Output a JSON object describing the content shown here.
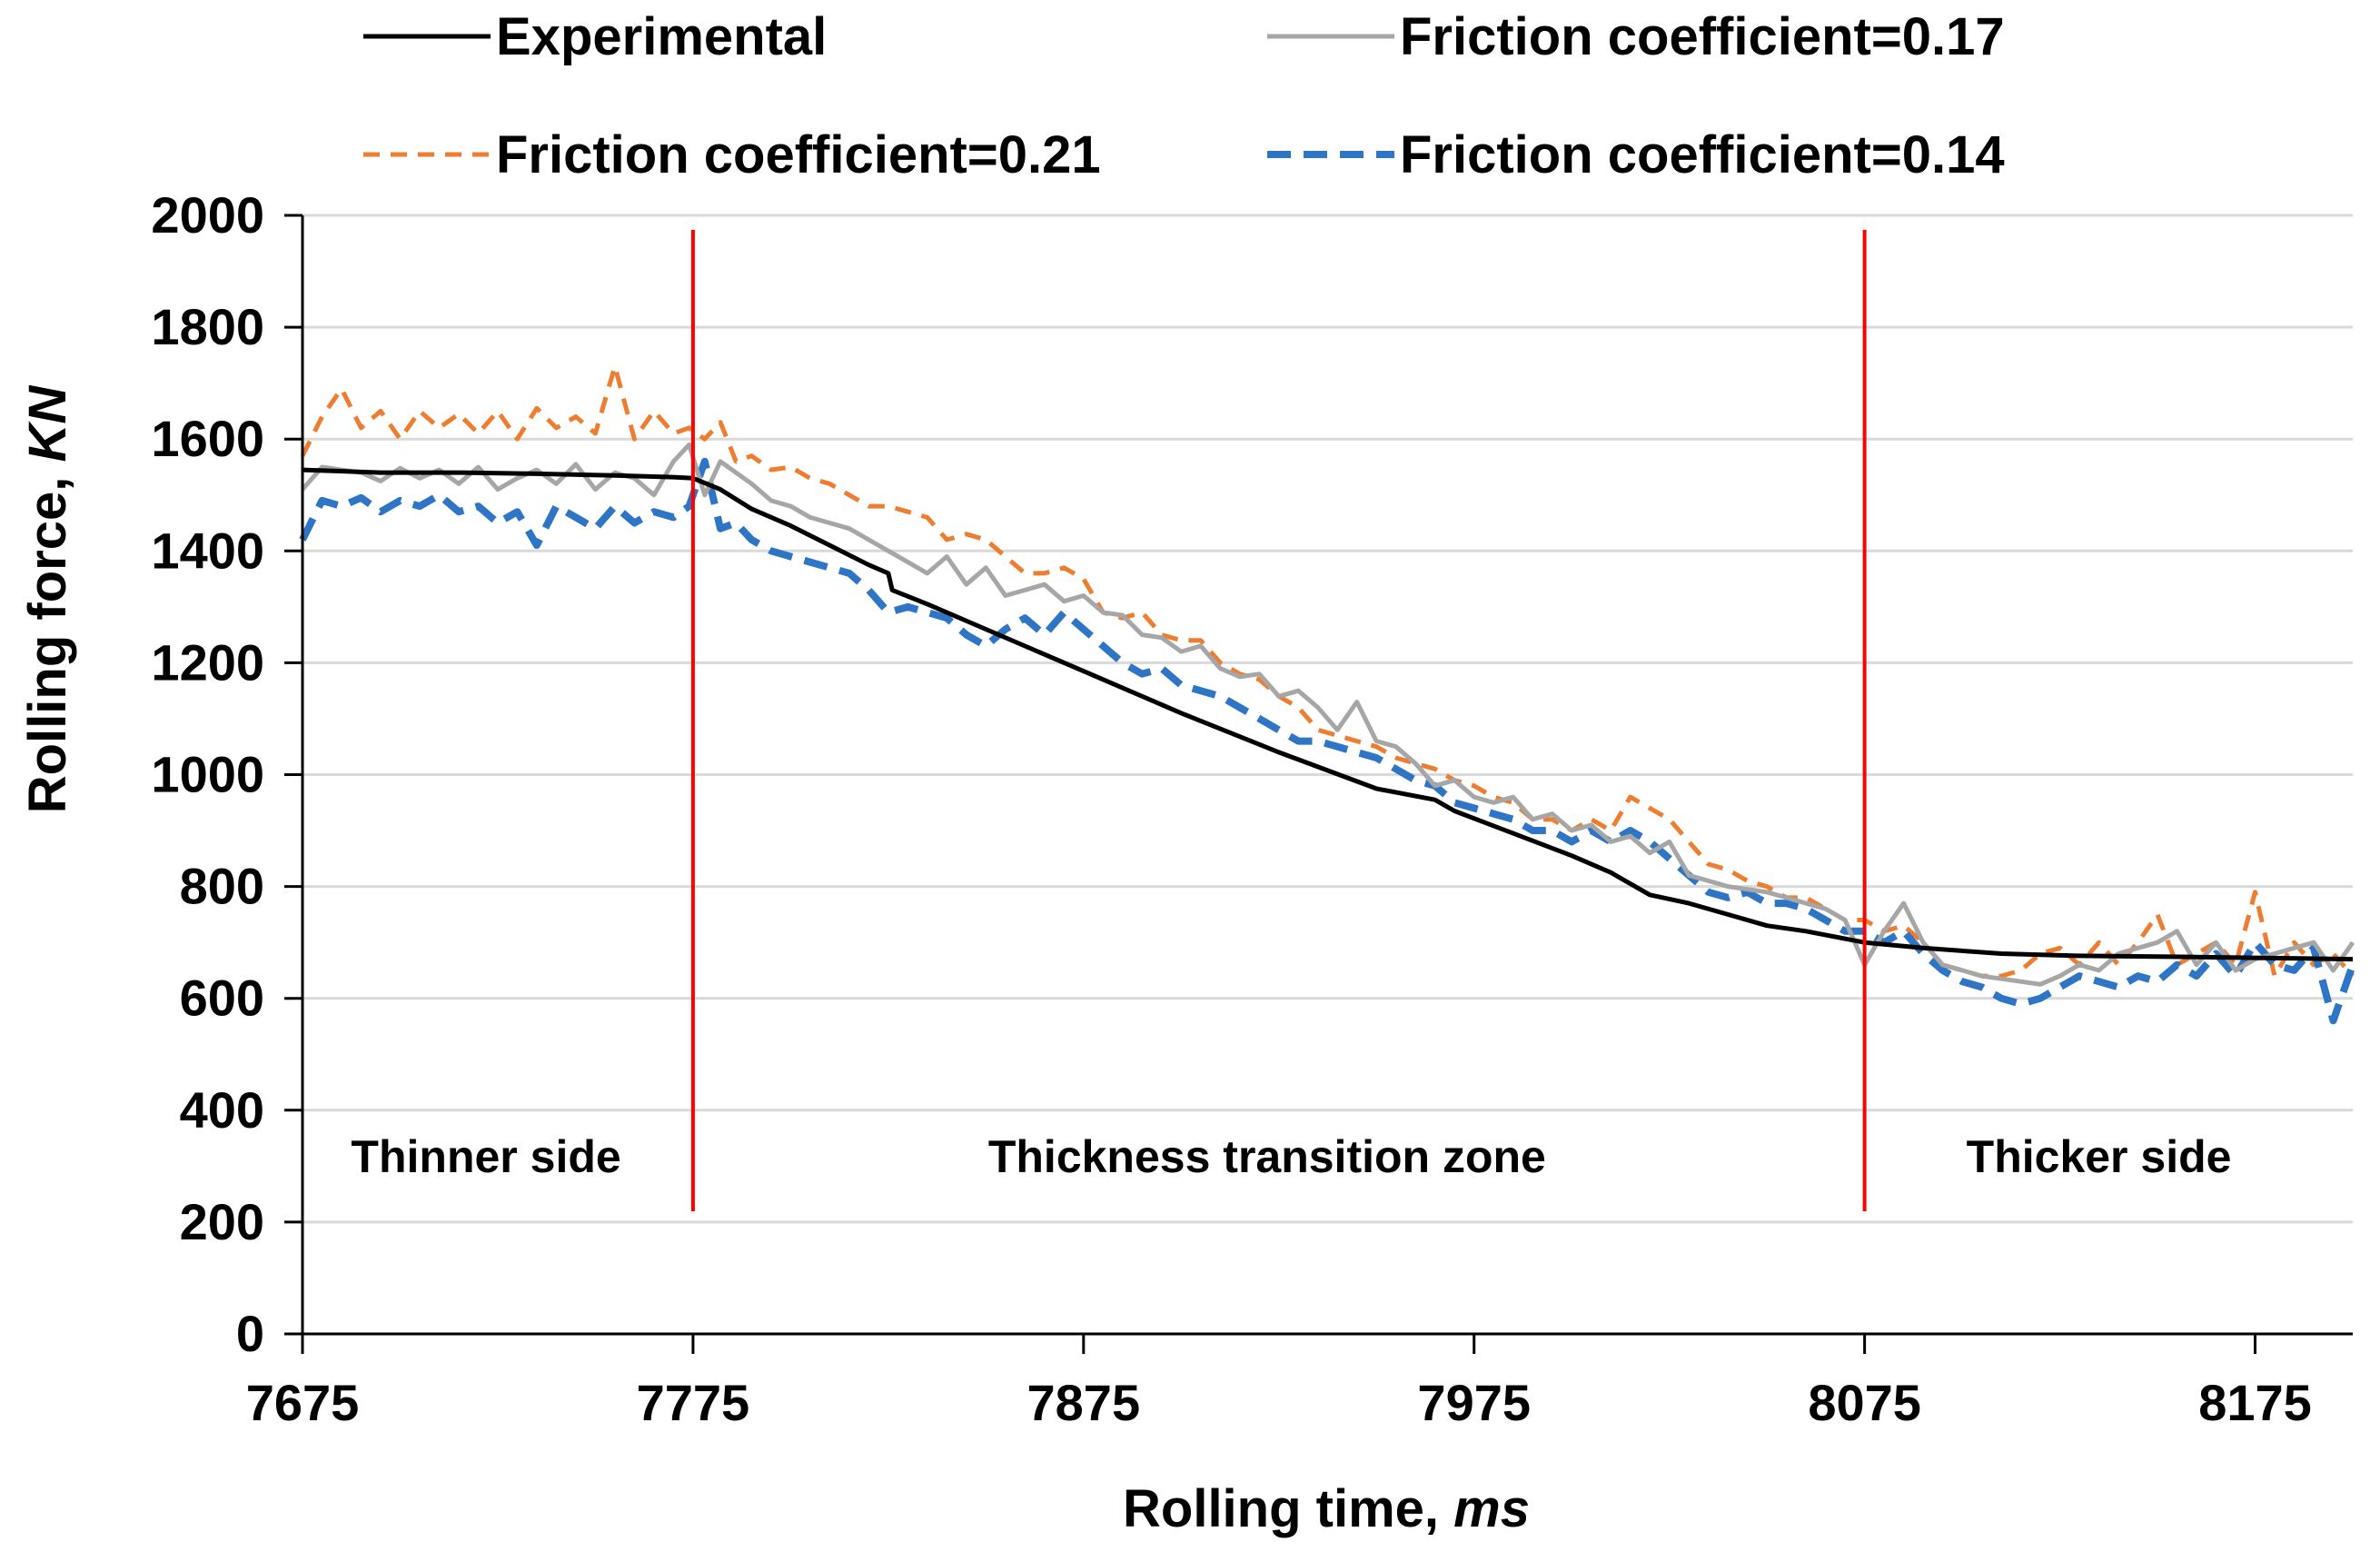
{
  "chart_data": {
    "type": "line",
    "title": "",
    "xlabel": {
      "main": "Rolling time, ",
      "unit": "ms"
    },
    "ylabel": {
      "main": "Rolling force, ",
      "unit": "KN"
    },
    "xlim": [
      7675,
      8200
    ],
    "ylim": [
      0,
      2000
    ],
    "xticks": [
      7675,
      7775,
      7875,
      7975,
      8075,
      8175
    ],
    "yticks": [
      0,
      200,
      400,
      600,
      800,
      1000,
      1200,
      1400,
      1600,
      1800,
      2000
    ],
    "grid": "horizontal",
    "legend_position": "top",
    "series": [
      {
        "name": "Experimental",
        "color": "#000000",
        "style": "solid",
        "x": [
          7675,
          7695,
          7715,
          7735,
          7755,
          7770,
          7775,
          7782,
          7790,
          7800,
          7810,
          7820,
          7825,
          7826,
          7835,
          7850,
          7875,
          7900,
          7925,
          7950,
          7965,
          7970,
          7985,
          8000,
          8010,
          8020,
          8030,
          8040,
          8050,
          8060,
          8075,
          8090,
          8110,
          8130,
          8160,
          8200
        ],
        "y": [
          1545,
          1540,
          1540,
          1538,
          1535,
          1532,
          1530,
          1510,
          1475,
          1445,
          1410,
          1375,
          1360,
          1330,
          1305,
          1260,
          1185,
          1110,
          1040,
          975,
          955,
          935,
          895,
          855,
          825,
          785,
          770,
          750,
          730,
          720,
          700,
          690,
          680,
          676,
          674,
          670
        ]
      },
      {
        "name": "Friction coefficient=0.17",
        "color": "#A6A6A6",
        "style": "solid",
        "x": [
          7675,
          7680,
          7685,
          7690,
          7695,
          7700,
          7705,
          7710,
          7715,
          7720,
          7725,
          7730,
          7735,
          7740,
          7745,
          7750,
          7755,
          7760,
          7765,
          7770,
          7774,
          7778,
          7782,
          7786,
          7790,
          7795,
          7800,
          7805,
          7810,
          7815,
          7820,
          7825,
          7830,
          7835,
          7840,
          7845,
          7850,
          7855,
          7860,
          7865,
          7870,
          7875,
          7880,
          7885,
          7890,
          7895,
          7900,
          7905,
          7910,
          7915,
          7920,
          7925,
          7930,
          7935,
          7940,
          7945,
          7950,
          7955,
          7960,
          7965,
          7970,
          7975,
          7980,
          7985,
          7990,
          7995,
          8000,
          8005,
          8010,
          8015,
          8020,
          8025,
          8030,
          8035,
          8040,
          8045,
          8050,
          8055,
          8060,
          8065,
          8070,
          8075,
          8080,
          8085,
          8090,
          8095,
          8100,
          8105,
          8110,
          8115,
          8120,
          8125,
          8130,
          8135,
          8140,
          8145,
          8150,
          8155,
          8160,
          8165,
          8170,
          8175,
          8180,
          8185,
          8190,
          8195,
          8200
        ],
        "y": [
          1510,
          1550,
          1545,
          1540,
          1525,
          1548,
          1530,
          1545,
          1520,
          1550,
          1510,
          1530,
          1545,
          1520,
          1555,
          1510,
          1540,
          1530,
          1500,
          1560,
          1590,
          1500,
          1560,
          1540,
          1520,
          1490,
          1480,
          1460,
          1450,
          1440,
          1420,
          1400,
          1380,
          1360,
          1390,
          1340,
          1370,
          1320,
          1330,
          1340,
          1310,
          1320,
          1290,
          1285,
          1250,
          1245,
          1220,
          1230,
          1190,
          1175,
          1180,
          1140,
          1150,
          1120,
          1080,
          1130,
          1060,
          1050,
          1020,
          980,
          990,
          960,
          950,
          960,
          920,
          930,
          900,
          910,
          880,
          890,
          860,
          880,
          820,
          810,
          800,
          795,
          790,
          780,
          770,
          760,
          740,
          660,
          720,
          770,
          700,
          660,
          650,
          640,
          635,
          630,
          625,
          640,
          660,
          650,
          680,
          690,
          700,
          720,
          660,
          700,
          650,
          670,
          680,
          690,
          700,
          650,
          700
        ],
        "note": ""
      },
      {
        "name": "Friction coefficient=0.21",
        "color": "#ED7D31",
        "style": "dashed",
        "x": [
          7675,
          7680,
          7685,
          7690,
          7695,
          7700,
          7705,
          7710,
          7715,
          7720,
          7725,
          7730,
          7735,
          7740,
          7745,
          7750,
          7755,
          7760,
          7765,
          7770,
          7774,
          7778,
          7782,
          7786,
          7790,
          7795,
          7800,
          7805,
          7810,
          7815,
          7820,
          7825,
          7830,
          7835,
          7840,
          7845,
          7850,
          7855,
          7860,
          7865,
          7870,
          7875,
          7880,
          7885,
          7890,
          7895,
          7900,
          7905,
          7910,
          7915,
          7920,
          7925,
          7930,
          7935,
          7940,
          7945,
          7950,
          7955,
          7960,
          7965,
          7970,
          7975,
          7980,
          7985,
          7990,
          7995,
          8000,
          8005,
          8010,
          8015,
          8020,
          8025,
          8030,
          8035,
          8040,
          8045,
          8050,
          8055,
          8060,
          8065,
          8070,
          8075,
          8080,
          8085,
          8090,
          8095,
          8100,
          8105,
          8110,
          8115,
          8120,
          8125,
          8130,
          8135,
          8140,
          8145,
          8150,
          8155,
          8160,
          8165,
          8170,
          8175,
          8180,
          8185,
          8190,
          8195,
          8200
        ],
        "y": [
          1570,
          1640,
          1690,
          1620,
          1650,
          1600,
          1650,
          1620,
          1645,
          1610,
          1650,
          1600,
          1655,
          1620,
          1640,
          1610,
          1730,
          1600,
          1650,
          1610,
          1620,
          1600,
          1630,
          1560,
          1570,
          1545,
          1550,
          1530,
          1520,
          1500,
          1480,
          1480,
          1470,
          1460,
          1420,
          1430,
          1420,
          1390,
          1360,
          1360,
          1370,
          1350,
          1290,
          1280,
          1290,
          1250,
          1240,
          1240,
          1200,
          1180,
          1170,
          1140,
          1120,
          1080,
          1070,
          1060,
          1050,
          1030,
          1020,
          1010,
          990,
          980,
          960,
          950,
          920,
          920,
          900,
          920,
          900,
          960,
          940,
          920,
          880,
          840,
          830,
          810,
          800,
          780,
          780,
          760,
          740,
          740,
          720,
          730,
          700,
          660,
          650,
          640,
          640,
          650,
          680,
          690,
          660,
          700,
          660,
          700,
          750,
          660,
          680,
          700,
          660,
          790,
          640,
          700,
          660,
          680,
          640
        ],
        "note": ""
      },
      {
        "name": "Friction coefficient=0.14",
        "color": "#2E75C5",
        "style": "dashed",
        "x": [
          7675,
          7680,
          7685,
          7690,
          7695,
          7700,
          7705,
          7710,
          7715,
          7720,
          7725,
          7730,
          7735,
          7740,
          7745,
          7750,
          7755,
          7760,
          7765,
          7770,
          7774,
          7778,
          7782,
          7786,
          7790,
          7795,
          7800,
          7805,
          7810,
          7815,
          7820,
          7825,
          7830,
          7835,
          7840,
          7845,
          7850,
          7855,
          7860,
          7865,
          7870,
          7875,
          7880,
          7885,
          7890,
          7895,
          7900,
          7905,
          7910,
          7915,
          7920,
          7925,
          7930,
          7935,
          7940,
          7945,
          7950,
          7955,
          7960,
          7965,
          7970,
          7975,
          7980,
          7985,
          7990,
          7995,
          8000,
          8005,
          8010,
          8015,
          8020,
          8025,
          8030,
          8035,
          8040,
          8045,
          8050,
          8055,
          8060,
          8065,
          8070,
          8075,
          8080,
          8085,
          8090,
          8095,
          8100,
          8105,
          8110,
          8115,
          8120,
          8125,
          8130,
          8135,
          8140,
          8145,
          8150,
          8155,
          8160,
          8165,
          8170,
          8175,
          8180,
          8185,
          8190,
          8195,
          8200
        ],
        "y": [
          1420,
          1490,
          1480,
          1495,
          1470,
          1490,
          1480,
          1500,
          1470,
          1480,
          1450,
          1470,
          1410,
          1480,
          1460,
          1440,
          1480,
          1450,
          1470,
          1460,
          1480,
          1560,
          1440,
          1450,
          1420,
          1400,
          1390,
          1380,
          1370,
          1360,
          1330,
          1290,
          1300,
          1290,
          1280,
          1250,
          1230,
          1260,
          1280,
          1250,
          1290,
          1260,
          1230,
          1200,
          1180,
          1190,
          1160,
          1150,
          1140,
          1120,
          1100,
          1080,
          1060,
          1060,
          1050,
          1040,
          1030,
          1010,
          990,
          980,
          950,
          940,
          930,
          920,
          900,
          900,
          880,
          900,
          880,
          900,
          880,
          850,
          820,
          790,
          780,
          790,
          770,
          770,
          760,
          740,
          720,
          720,
          700,
          720,
          680,
          650,
          630,
          620,
          600,
          590,
          600,
          620,
          640,
          630,
          620,
          640,
          630,
          660,
          640,
          680,
          640,
          700,
          660,
          650,
          690,
          560,
          660
        ],
        "note": ""
      }
    ],
    "vertical_markers": [
      {
        "x": 7775,
        "color": "#FF0000"
      },
      {
        "x": 8075,
        "color": "#FF0000"
      }
    ],
    "zone_labels": [
      {
        "text": "Thinner side",
        "x": 7722
      },
      {
        "text": "Thickness transition zone",
        "x": 7922
      },
      {
        "text": "Thicker side",
        "x": 8135
      }
    ]
  }
}
